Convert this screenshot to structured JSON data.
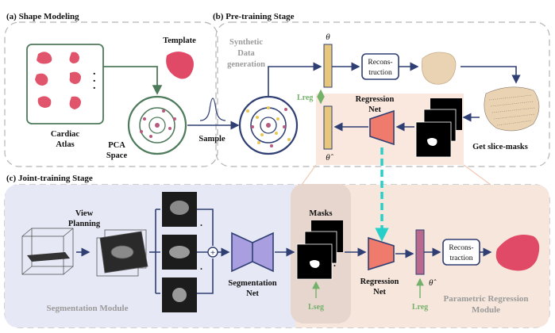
{
  "sections": {
    "shape_modeling": "(a) Shape Modeling",
    "pretraining": "(b) Pre-training Stage",
    "joint_training": "(c) Joint-training Stage"
  },
  "panel_a": {
    "template": "Template",
    "cardiac_atlas_line1": "Cardiac",
    "cardiac_atlas_line2": "Atlas",
    "pca_line1": "PCA",
    "pca_line2": "Space",
    "sample": "Sample",
    "dots": "."
  },
  "panel_b": {
    "synthetic_line1": "Synthetic",
    "synthetic_line2": "Data",
    "synthetic_line3": "generation",
    "theta": "θ",
    "theta_hat": "θ̂",
    "recon_line1": "Recons-",
    "recon_line2": "truction",
    "lreg": "Lreg",
    "regnet_line1": "Regression",
    "regnet_line2": "Net",
    "get_slice_masks": "Get slice-masks"
  },
  "panel_c": {
    "view_planning_line1": "View",
    "view_planning_line2": "Planning",
    "segnet_line1": "Segmentation",
    "segnet_line2": "Net",
    "masks": "Masks",
    "lseg": "Lseg",
    "regnet_line1": "Regression",
    "regnet_line2": "Net",
    "lreg": "Lreg",
    "theta_hat": "θ̂",
    "recon_line1": "Recons-",
    "recon_line2": "traction",
    "seg_module": "Segmentation Module",
    "prm_line1": "Parametric Regression",
    "prm_line2": "Module",
    "plus": "+",
    "dots": "."
  },
  "colors": {
    "heart_red": "#e0556b",
    "heart_template": "#e04a66",
    "beige_heart": "#e9d3b3",
    "green_box": "#4e7a5c",
    "navy_arrow": "#2f3f73",
    "theta_bar": "#e7c77b",
    "theta_hat_bar": "#b96a8c",
    "regnet_fill": "#ee7b6c",
    "segnet_fill": "#a89ee0",
    "lreg_green": "#74b26a",
    "cyan_dash": "#26d0c8",
    "panel_c_left_bg": "#e6e8f5",
    "panel_c_right_bg": "#f6e6dc",
    "masks_bg": "#eadbd3",
    "pretrain_highlight": "#f9e4d8"
  }
}
